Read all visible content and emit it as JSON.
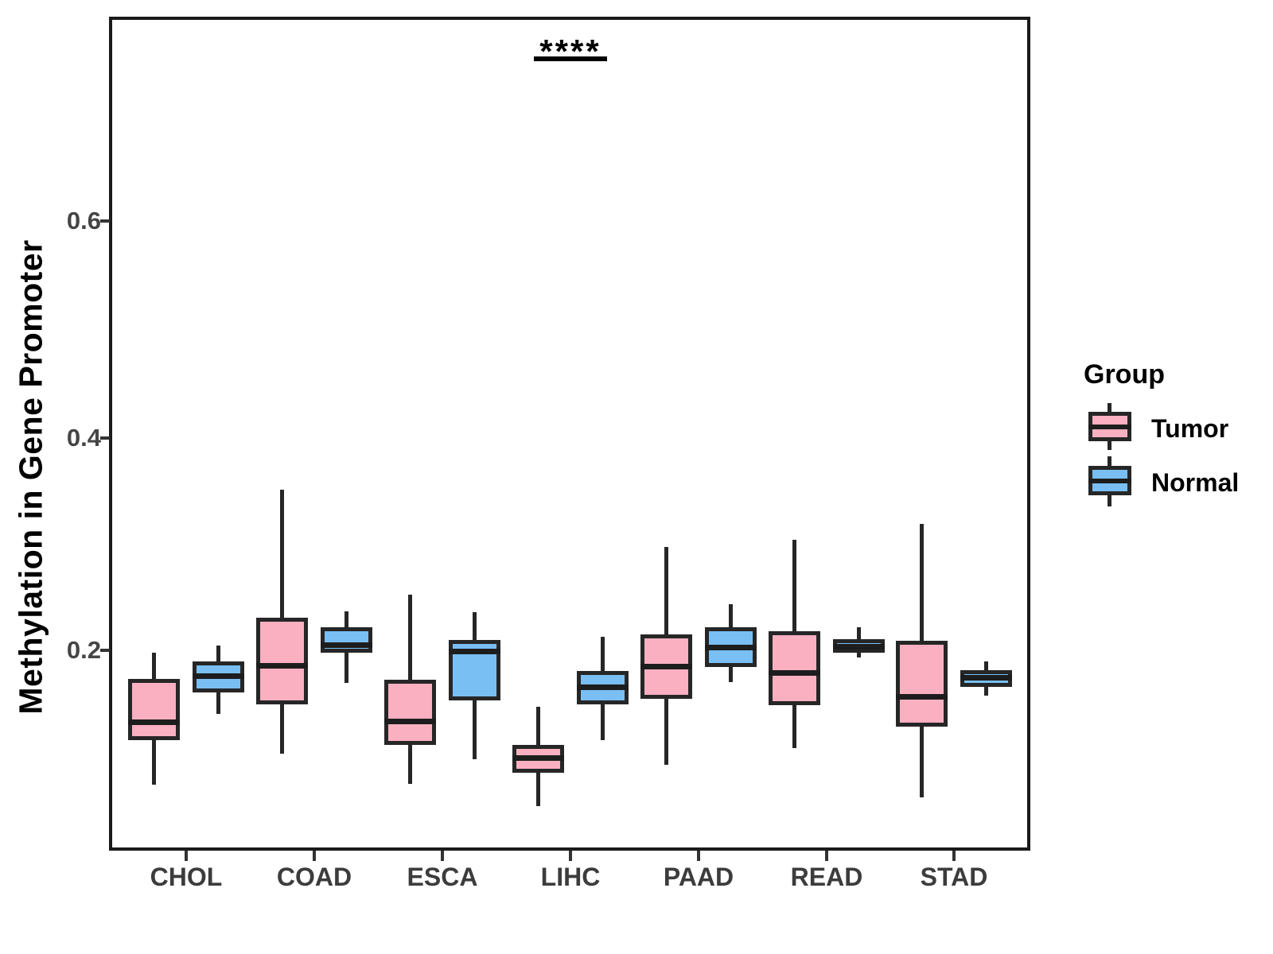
{
  "chart_data": {
    "type": "boxplot",
    "title": "",
    "xlabel": "",
    "ylabel": "Methylation in Gene Promoter",
    "ylim": [
      0.03,
      0.78
    ],
    "yticks": [
      "0.2",
      "0.4",
      "0.6"
    ],
    "grid": "off",
    "categories": [
      "CHOL",
      "COAD",
      "ESCA",
      "LIHC",
      "PAAD",
      "READ",
      "STAD"
    ],
    "legend": {
      "title": "Group",
      "position": "right",
      "entries": [
        {
          "label": "Tumor",
          "color": "#FAB0C1"
        },
        {
          "label": "Normal",
          "color": "#79BFF4"
        }
      ]
    },
    "annotations": [
      {
        "text": "****",
        "category": "LIHC",
        "underlined": true
      }
    ],
    "series": [
      {
        "name": "Tumor",
        "color": "#FAB0C1",
        "boxes": [
          {
            "category": "CHOL",
            "whisker_low": 0.075,
            "q1": 0.117,
            "median": 0.133,
            "q3": 0.174,
            "whisker_high": 0.198
          },
          {
            "category": "COAD",
            "whisker_low": 0.104,
            "q1": 0.15,
            "median": 0.186,
            "q3": 0.231,
            "whisker_high": 0.35
          },
          {
            "category": "ESCA",
            "whisker_low": 0.076,
            "q1": 0.112,
            "median": 0.134,
            "q3": 0.173,
            "whisker_high": 0.252
          },
          {
            "category": "LIHC",
            "whisker_low": 0.055,
            "q1": 0.086,
            "median": 0.1,
            "q3": 0.112,
            "whisker_high": 0.148
          },
          {
            "category": "PAAD",
            "whisker_low": 0.094,
            "q1": 0.155,
            "median": 0.185,
            "q3": 0.215,
            "whisker_high": 0.297
          },
          {
            "category": "READ",
            "whisker_low": 0.109,
            "q1": 0.149,
            "median": 0.179,
            "q3": 0.218,
            "whisker_high": 0.303
          },
          {
            "category": "STAD",
            "whisker_low": 0.063,
            "q1": 0.129,
            "median": 0.157,
            "q3": 0.209,
            "whisker_high": 0.318
          }
        ]
      },
      {
        "name": "Normal",
        "color": "#79BFF4",
        "boxes": [
          {
            "category": "CHOL",
            "whisker_low": 0.141,
            "q1": 0.161,
            "median": 0.176,
            "q3": 0.19,
            "whisker_high": 0.205
          },
          {
            "category": "COAD",
            "whisker_low": 0.17,
            "q1": 0.198,
            "median": 0.205,
            "q3": 0.222,
            "whisker_high": 0.237
          },
          {
            "category": "ESCA",
            "whisker_low": 0.099,
            "q1": 0.154,
            "median": 0.199,
            "q3": 0.21,
            "whisker_high": 0.236
          },
          {
            "category": "LIHC",
            "whisker_low": 0.117,
            "q1": 0.15,
            "median": 0.166,
            "q3": 0.181,
            "whisker_high": 0.213
          },
          {
            "category": "PAAD",
            "whisker_low": 0.171,
            "q1": 0.185,
            "median": 0.203,
            "q3": 0.222,
            "whisker_high": 0.243
          },
          {
            "category": "READ",
            "whisker_low": 0.194,
            "q1": 0.198,
            "median": 0.204,
            "q3": 0.211,
            "whisker_high": 0.222
          },
          {
            "category": "STAD",
            "whisker_low": 0.158,
            "q1": 0.166,
            "median": 0.175,
            "q3": 0.182,
            "whisker_high": 0.19
          }
        ]
      }
    ]
  }
}
